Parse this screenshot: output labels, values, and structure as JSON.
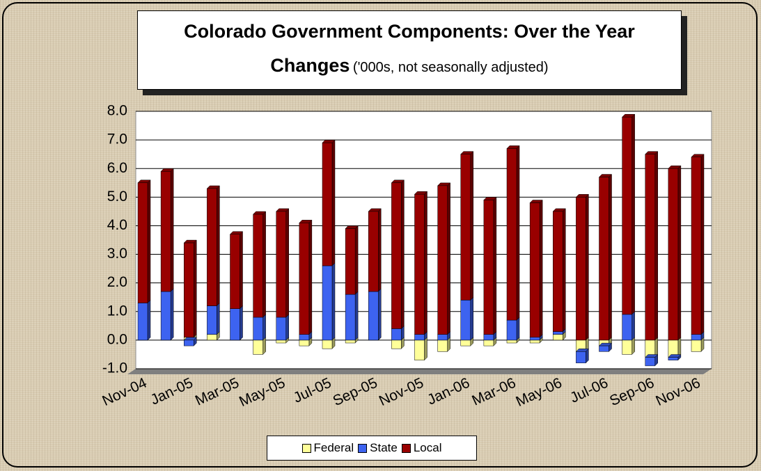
{
  "chart_data": {
    "type": "stacked_bar",
    "title": "Colorado Government Components: Over the Year Changes",
    "subtitle": "('000s, not seasonally adjusted)",
    "categories": [
      "Nov-04",
      null,
      "Jan-05",
      null,
      "Mar-05",
      null,
      "May-05",
      null,
      "Jul-05",
      null,
      "Sep-05",
      null,
      "Nov-05",
      null,
      "Jan-06",
      null,
      "Mar-06",
      null,
      "May-06",
      null,
      "Jul-06",
      null,
      "Sep-06",
      null,
      "Nov-06"
    ],
    "series": [
      {
        "name": "Federal",
        "color": "#ffff99",
        "values": [
          0,
          0,
          0.1,
          0.2,
          0,
          -0.5,
          -0.1,
          -0.2,
          -0.3,
          -0.1,
          0,
          -0.3,
          -0.7,
          -0.4,
          -0.2,
          -0.2,
          -0.1,
          -0.1,
          0.2,
          -0.4,
          -0.2,
          -0.5,
          -0.6,
          -0.6,
          -0.4
        ]
      },
      {
        "name": "State",
        "color": "#3d63f0",
        "values": [
          1.3,
          1.7,
          -0.2,
          1.0,
          1.1,
          0.8,
          0.8,
          0.2,
          2.6,
          1.6,
          1.7,
          0.4,
          0.2,
          0.2,
          1.4,
          0.2,
          0.7,
          0.1,
          0.1,
          -0.4,
          -0.2,
          0.9,
          -0.3,
          -0.1,
          0.2
        ]
      },
      {
        "name": "Local",
        "color": "#990000",
        "values": [
          4.2,
          4.2,
          3.3,
          4.1,
          2.6,
          3.6,
          3.7,
          3.9,
          4.3,
          2.3,
          2.8,
          5.1,
          4.9,
          5.2,
          5.1,
          4.7,
          6.0,
          4.7,
          4.2,
          5.0,
          5.7,
          6.9,
          6.5,
          6.0,
          6.2
        ]
      }
    ],
    "ylim": [
      -1,
      8
    ],
    "yticks": [
      {
        "value": -1,
        "label": "-1.0"
      },
      {
        "value": 0,
        "label": "0.0"
      },
      {
        "value": 1,
        "label": "1.0"
      },
      {
        "value": 2,
        "label": "2.0"
      },
      {
        "value": 3,
        "label": "3.0"
      },
      {
        "value": 4,
        "label": "4.0"
      },
      {
        "value": 5,
        "label": "5.0"
      },
      {
        "value": 6,
        "label": "6.0"
      },
      {
        "value": 7,
        "label": "7.0"
      },
      {
        "value": 8,
        "label": "8.0"
      }
    ],
    "grid": true
  }
}
